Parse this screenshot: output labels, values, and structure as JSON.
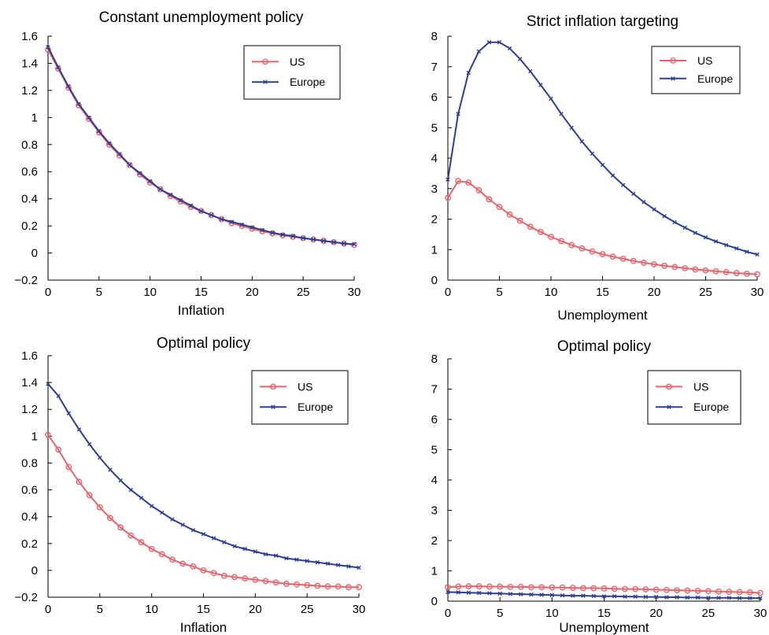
{
  "colors": {
    "us": "#e8646b",
    "europe": "#2b3f95"
  },
  "chart_data": [
    {
      "type": "line",
      "title": "Constant unemployment policy",
      "xlabel": "Inflation",
      "ylabel": "",
      "xlim": [
        0,
        30
      ],
      "ylim": [
        -0.2,
        1.6
      ],
      "xticks": [
        0,
        5,
        10,
        15,
        20,
        25,
        30
      ],
      "yticks": [
        -0.2,
        0,
        0.2,
        0.4,
        0.6,
        0.8,
        1,
        1.2,
        1.4,
        1.6
      ],
      "ytick_labels": [
        "−0.2",
        "0",
        "0.2",
        "0.4",
        "0.6",
        "0.8",
        "1",
        "1.2",
        "1.4",
        "1.6"
      ],
      "grid": false,
      "legend": "top-right",
      "x": [
        0,
        1,
        2,
        3,
        4,
        5,
        6,
        7,
        8,
        9,
        10,
        11,
        12,
        13,
        14,
        15,
        16,
        17,
        18,
        19,
        20,
        21,
        22,
        23,
        24,
        25,
        26,
        27,
        28,
        29,
        30
      ],
      "series": [
        {
          "name": "US",
          "values": [
            1.5,
            1.36,
            1.22,
            1.09,
            0.99,
            0.89,
            0.8,
            0.72,
            0.65,
            0.58,
            0.52,
            0.47,
            0.42,
            0.38,
            0.34,
            0.31,
            0.28,
            0.25,
            0.22,
            0.2,
            0.18,
            0.16,
            0.145,
            0.13,
            0.12,
            0.11,
            0.1,
            0.09,
            0.08,
            0.07,
            0.06
          ]
        },
        {
          "name": "Europe",
          "values": [
            1.52,
            1.37,
            1.23,
            1.1,
            1.0,
            0.9,
            0.81,
            0.73,
            0.65,
            0.59,
            0.53,
            0.47,
            0.43,
            0.39,
            0.35,
            0.31,
            0.28,
            0.25,
            0.23,
            0.21,
            0.19,
            0.17,
            0.15,
            0.135,
            0.125,
            0.11,
            0.1,
            0.09,
            0.08,
            0.07,
            0.065
          ]
        }
      ]
    },
    {
      "type": "line",
      "title": "Strict inflation targeting",
      "xlabel": "Unemployment",
      "ylabel": "",
      "xlim": [
        0,
        30
      ],
      "ylim": [
        0,
        8
      ],
      "xticks": [
        0,
        5,
        10,
        15,
        20,
        25,
        30
      ],
      "yticks": [
        0,
        1,
        2,
        3,
        4,
        5,
        6,
        7,
        8
      ],
      "ytick_labels": [
        "0",
        "1",
        "2",
        "3",
        "4",
        "5",
        "6",
        "7",
        "8"
      ],
      "grid": false,
      "legend": "top-right",
      "x": [
        0,
        1,
        2,
        3,
        4,
        5,
        6,
        7,
        8,
        9,
        10,
        11,
        12,
        13,
        14,
        15,
        16,
        17,
        18,
        19,
        20,
        21,
        22,
        23,
        24,
        25,
        26,
        27,
        28,
        29,
        30
      ],
      "series": [
        {
          "name": "US",
          "values": [
            2.7,
            3.25,
            3.2,
            2.95,
            2.65,
            2.4,
            2.15,
            1.95,
            1.75,
            1.58,
            1.42,
            1.28,
            1.15,
            1.04,
            0.94,
            0.85,
            0.77,
            0.7,
            0.63,
            0.57,
            0.52,
            0.47,
            0.43,
            0.39,
            0.35,
            0.32,
            0.29,
            0.26,
            0.23,
            0.21,
            0.19
          ]
        },
        {
          "name": "Europe",
          "values": [
            3.3,
            5.45,
            6.8,
            7.5,
            7.8,
            7.8,
            7.6,
            7.25,
            6.85,
            6.4,
            5.95,
            5.45,
            5.0,
            4.55,
            4.15,
            3.78,
            3.43,
            3.12,
            2.83,
            2.56,
            2.32,
            2.1,
            1.9,
            1.72,
            1.55,
            1.4,
            1.27,
            1.15,
            1.04,
            0.93,
            0.84
          ]
        }
      ]
    },
    {
      "type": "line",
      "title": "Optimal policy",
      "xlabel": "Inflation",
      "ylabel": "",
      "xlim": [
        0,
        30
      ],
      "ylim": [
        -0.2,
        1.6
      ],
      "xticks": [
        0,
        5,
        10,
        15,
        20,
        25,
        30
      ],
      "yticks": [
        -0.2,
        0,
        0.2,
        0.4,
        0.6,
        0.8,
        1,
        1.2,
        1.4,
        1.6
      ],
      "ytick_labels": [
        "−0.2",
        "0",
        "0.2",
        "0.4",
        "0.6",
        "0.8",
        "1",
        "1.2",
        "1.4",
        "1.6"
      ],
      "grid": false,
      "legend": "top-right",
      "x": [
        0,
        1,
        2,
        3,
        4,
        5,
        6,
        7,
        8,
        9,
        10,
        11,
        12,
        13,
        14,
        15,
        16,
        17,
        18,
        19,
        20,
        21,
        22,
        23,
        24,
        25,
        26,
        27,
        28,
        29,
        30
      ],
      "series": [
        {
          "name": "US",
          "values": [
            1.01,
            0.9,
            0.77,
            0.66,
            0.56,
            0.47,
            0.39,
            0.32,
            0.26,
            0.21,
            0.16,
            0.12,
            0.08,
            0.05,
            0.03,
            0.0,
            -0.02,
            -0.04,
            -0.05,
            -0.06,
            -0.07,
            -0.08,
            -0.09,
            -0.1,
            -0.105,
            -0.11,
            -0.115,
            -0.12,
            -0.12,
            -0.125,
            -0.125
          ]
        },
        {
          "name": "Europe",
          "values": [
            1.39,
            1.3,
            1.17,
            1.05,
            0.94,
            0.84,
            0.75,
            0.67,
            0.6,
            0.54,
            0.48,
            0.43,
            0.38,
            0.34,
            0.3,
            0.27,
            0.24,
            0.21,
            0.18,
            0.16,
            0.14,
            0.12,
            0.11,
            0.09,
            0.08,
            0.07,
            0.06,
            0.05,
            0.04,
            0.03,
            0.02
          ]
        }
      ]
    },
    {
      "type": "line",
      "title": "Optimal policy",
      "xlabel": "Unemployment",
      "ylabel": "",
      "xlim": [
        0,
        30
      ],
      "ylim": [
        0,
        8
      ],
      "xticks": [
        0,
        5,
        10,
        15,
        20,
        25,
        30
      ],
      "yticks": [
        0,
        1,
        2,
        3,
        4,
        5,
        6,
        7,
        8
      ],
      "ytick_labels": [
        "0",
        "1",
        "2",
        "3",
        "4",
        "5",
        "6",
        "7",
        "8"
      ],
      "grid": false,
      "legend": "top-right",
      "x": [
        0,
        1,
        2,
        3,
        4,
        5,
        6,
        7,
        8,
        9,
        10,
        11,
        12,
        13,
        14,
        15,
        16,
        17,
        18,
        19,
        20,
        21,
        22,
        23,
        24,
        25,
        26,
        27,
        28,
        29,
        30
      ],
      "series": [
        {
          "name": "US",
          "values": [
            0.46,
            0.48,
            0.49,
            0.49,
            0.48,
            0.48,
            0.47,
            0.47,
            0.46,
            0.46,
            0.45,
            0.45,
            0.44,
            0.43,
            0.43,
            0.42,
            0.41,
            0.4,
            0.4,
            0.39,
            0.38,
            0.37,
            0.36,
            0.35,
            0.34,
            0.33,
            0.32,
            0.31,
            0.3,
            0.29,
            0.27
          ]
        },
        {
          "name": "Europe",
          "values": [
            0.3,
            0.29,
            0.28,
            0.27,
            0.26,
            0.25,
            0.24,
            0.23,
            0.22,
            0.21,
            0.2,
            0.19,
            0.18,
            0.18,
            0.17,
            0.16,
            0.16,
            0.15,
            0.15,
            0.14,
            0.14,
            0.13,
            0.13,
            0.12,
            0.12,
            0.11,
            0.11,
            0.11,
            0.1,
            0.1,
            0.1
          ]
        }
      ]
    }
  ]
}
